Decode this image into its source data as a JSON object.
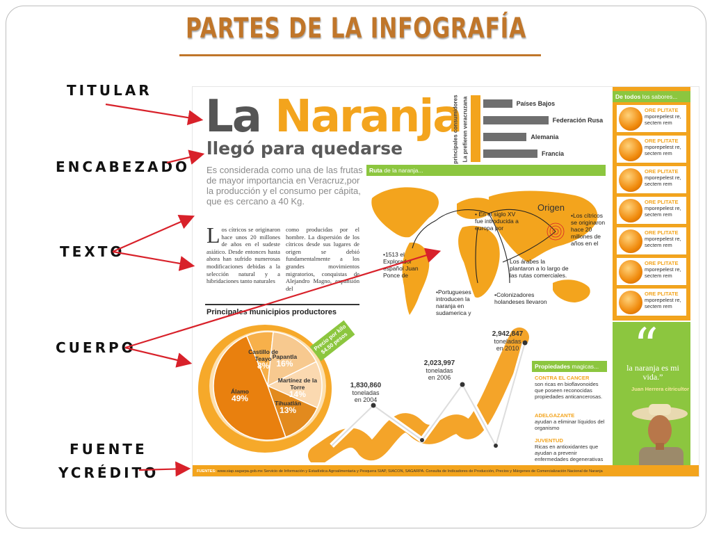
{
  "slide": {
    "title": "PARTES DE LA INFOGRAFÍA",
    "labels": {
      "titular": "TITULAR",
      "encabezado": "ENCABEZADO",
      "texto": "TEXTO",
      "cuerpo": "CUERPO",
      "fuente_line1": "FUENTE",
      "fuente_line2": "YCRÉDITO"
    },
    "arrow_color": "#d8212a"
  },
  "infographic": {
    "headline_part1": "La",
    "headline_part2": "Naranja",
    "subheadline": "llegó para quedarse",
    "intro": "Es considerada como una de las frutas de mayor importancia en Veracruz,por la producción y el consumo per cápita, que es cercano a 40 Kg.",
    "body_dropcap": "L",
    "body_col1": "os cítricos se originaron hace unos 20 millones de años en el sudeste asiático. Desde entonces hasta ahora han sufrido numerosas modificaciones debidas a la selección natural y a hibridaciones tanto naturales",
    "body_col2": "como producidas por el hombre. La dispersión de los cítricos desde sus lugares de origen se debió fundamentalmente a los grandes movimientos migratorios, conquistas de Alejandro Magno, expansión del",
    "preferred_title": "La prefieren veracruzana",
    "preferred_subtitle": "principales consumidores",
    "consumers": [
      {
        "name": "Países Bajos",
        "value": 0.32
      },
      {
        "name": "Federación Rusa",
        "value": 0.72
      },
      {
        "name": "Alemania",
        "value": 0.48
      },
      {
        "name": "Francia",
        "value": 0.6
      }
    ],
    "ruta_title_bold": "Ruta",
    "ruta_title_rest": " de la naranja...",
    "map_notes": {
      "origen": "Origen",
      "siglo_xv": "• En el siglo XV fue introducida a europa por",
      "citricos": "•Los cítricos se originaron hace 20 millones de años en el",
      "arabes": "Los árabes la plantaron a lo largo de las rutas comerciales.",
      "explorador": "•1513 el Explorador español Juan Ponce de",
      "portugueses": "•Portugueses introducen la naranja en sudamerica y",
      "colonizadores": "•Colonizadores holandeses llevaron"
    },
    "producers_title": "Principales municipios productores",
    "producers": [
      {
        "name": "Castillo de Teayo",
        "pct": "8%",
        "value": 8
      },
      {
        "name": "Papantla",
        "pct": "16%",
        "value": 16
      },
      {
        "name": "Martínez de la Torre",
        "pct": "14%",
        "value": 14
      },
      {
        "name": "Tihuatlán",
        "pct": "13%",
        "value": 13
      },
      {
        "name": "Álamo",
        "pct": "49%",
        "value": 49
      }
    ],
    "price_tag": "Precio por kilo $4.50 pesos",
    "production": [
      {
        "value": "1,830,860",
        "unit": "toneladas",
        "year": "en 2004"
      },
      {
        "value": "2,023,997",
        "unit": "toneladas",
        "year": "en 2006"
      },
      {
        "value": "2,942,847",
        "unit": "toneladas",
        "year": "en 2010"
      }
    ],
    "properties_title_bold": "Propiedades",
    "properties_title_rest": " magicas...",
    "properties": [
      {
        "title": "CONTRA EL CANCER",
        "text": "son ricas en bioflavonoides que poseen reconocidas propiedades anticancerosas."
      },
      {
        "title": "ADELGAZANTE",
        "text": "ayudan a eliminar líquidos del organismo"
      },
      {
        "title": "JUVENTUD",
        "text": "Ricas en antioxidantes que ayudan a prevenir enfermedades degenerativas"
      }
    ],
    "sabores_title_bold": "De todos",
    "sabores_title_rest": " los sabores...",
    "sabores": [
      {
        "name": "ORE PLITATE",
        "text": "mporepelest re, sectem rem"
      },
      {
        "name": "ORE PLITATE",
        "text": "mporepelest re, sectem rem"
      },
      {
        "name": "ORE PLITATE",
        "text": "mporepelest re, sectem rem"
      },
      {
        "name": "ORE PLITATE",
        "text": "mporepelest re, sectem rem"
      },
      {
        "name": "ORE PLITATE",
        "text": "mporepelest re, sectem rem"
      },
      {
        "name": "ORE PLITATE",
        "text": "mporepelest re, sectem rem"
      },
      {
        "name": "ORE PLITATE",
        "text": "mporepelest re, sectem rem"
      }
    ],
    "quote": "la naranja es mi vida.”",
    "quote_author": "Juan Herrera citricultor",
    "fuentes_label": "FUENTES:",
    "fuentes_text": " www.siap.sagarpa.gob.mx Servicio de Información y Estadística Agroalimentaria y Pesquera SIAP, SIACON, SAGARPA. Consulta de Indicadores de Producción, Precios y Márgenes de Comercialización Nacional de Naranja",
    "colors": {
      "orange": "#f3a41d",
      "green": "#8cc63f",
      "gray": "#555555"
    }
  }
}
